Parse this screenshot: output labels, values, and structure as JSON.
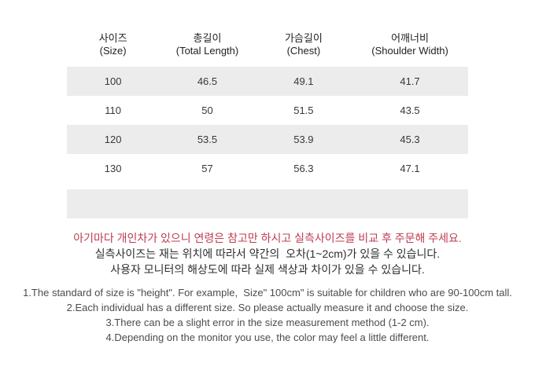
{
  "table": {
    "columns": [
      {
        "ko": "사이즈",
        "en": "(Size)"
      },
      {
        "ko": "총길이",
        "en": "(Total Length)"
      },
      {
        "ko": "가슴길이",
        "en": "(Chest)"
      },
      {
        "ko": "어깨너비",
        "en": "(Shoulder Width)"
      }
    ],
    "rows": [
      [
        "100",
        "46.5",
        "49.1",
        "41.7"
      ],
      [
        "110",
        "50",
        "51.5",
        "43.5"
      ],
      [
        "120",
        "53.5",
        "53.9",
        "45.3"
      ],
      [
        "130",
        "57",
        "56.3",
        "47.1"
      ]
    ]
  },
  "notice_ko": {
    "highlight": "아기마다 개인차가 있으니 연령은 참고만 하시고 실측사이즈를 비교 후 주문해 주세요.",
    "lines": [
      "실측사이즈는 재는 위치에 따라서 약간의  오차(1~2cm)가 있을 수 있습니다.",
      "사용자 모니터의 해상도에 따라 실제 색상과 차이가 있을 수 있습니다."
    ]
  },
  "notice_en": {
    "lines": [
      "1.The standard of size is \"height\". For example,  Size\" 100cm\" is suitable for children who are 90-100cm tall.",
      "2.Each individual has a different size. So please actually measure it and choose the size.",
      "3.There can be a slight error in the size measurement method (1-2 cm).",
      "4.Depending on the monitor you use, the color may feel a little different."
    ]
  },
  "colors": {
    "row_stripe": "#ececec",
    "highlight_text": "#be3c50",
    "body_text": "#383838",
    "secondary_text": "#4c4c4c"
  }
}
